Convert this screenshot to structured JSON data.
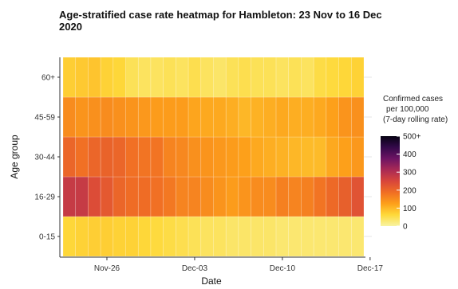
{
  "chart_data": {
    "type": "heatmap",
    "title_line1": "Age-stratified case rate heatmap for Hambleton: 23 Nov to 16 Dec",
    "title_line2": "2020",
    "xlabel": "Date",
    "ylabel": "Age group",
    "x_tick_labels": [
      "Nov-26",
      "Dec-03",
      "Dec-10",
      "Dec-17"
    ],
    "x": [
      "2020-11-23",
      "2020-11-24",
      "2020-11-25",
      "2020-11-26",
      "2020-11-27",
      "2020-11-28",
      "2020-11-29",
      "2020-11-30",
      "2020-12-01",
      "2020-12-02",
      "2020-12-03",
      "2020-12-04",
      "2020-12-05",
      "2020-12-06",
      "2020-12-07",
      "2020-12-08",
      "2020-12-09",
      "2020-12-10",
      "2020-12-11",
      "2020-12-12",
      "2020-12-13",
      "2020-12-14",
      "2020-12-15",
      "2020-12-16"
    ],
    "y": [
      "0-15",
      "16-29",
      "30-44",
      "45-59",
      "60+"
    ],
    "values": {
      "60+": [
        75,
        80,
        85,
        70,
        65,
        45,
        40,
        40,
        45,
        40,
        50,
        40,
        35,
        45,
        50,
        45,
        45,
        40,
        45,
        40,
        55,
        60,
        65,
        70
      ],
      "45-59": [
        150,
        140,
        145,
        150,
        145,
        140,
        135,
        130,
        130,
        130,
        120,
        115,
        115,
        110,
        100,
        105,
        110,
        115,
        110,
        110,
        115,
        125,
        140,
        145
      ],
      "30-44": [
        200,
        185,
        200,
        205,
        200,
        185,
        180,
        180,
        160,
        155,
        145,
        140,
        135,
        130,
        125,
        115,
        110,
        105,
        100,
        95,
        95,
        115,
        125,
        135
      ],
      "16-29": [
        275,
        275,
        240,
        220,
        200,
        190,
        190,
        185,
        175,
        160,
        160,
        150,
        140,
        130,
        140,
        150,
        150,
        165,
        160,
        165,
        180,
        195,
        210,
        230
      ],
      "0-15": [
        65,
        70,
        75,
        75,
        70,
        70,
        65,
        60,
        55,
        50,
        45,
        40,
        40,
        35,
        35,
        35,
        35,
        30,
        30,
        30,
        30,
        30,
        30,
        30
      ]
    },
    "colorbar": {
      "title_lines": [
        "Confirmed cases",
        "per 100,000",
        "(7-day rolling rate)"
      ],
      "min": 0,
      "max": 500,
      "ticks": [
        0,
        100,
        200,
        300,
        400,
        500
      ],
      "tick_labels": [
        "0",
        "100",
        "200",
        "300",
        "400",
        "500+"
      ]
    },
    "palette": [
      "#f8f4a2",
      "#fed93a",
      "#fda01a",
      "#f06e24",
      "#d8463b",
      "#a92a55",
      "#6e1463",
      "#34094a",
      "#060312"
    ]
  }
}
